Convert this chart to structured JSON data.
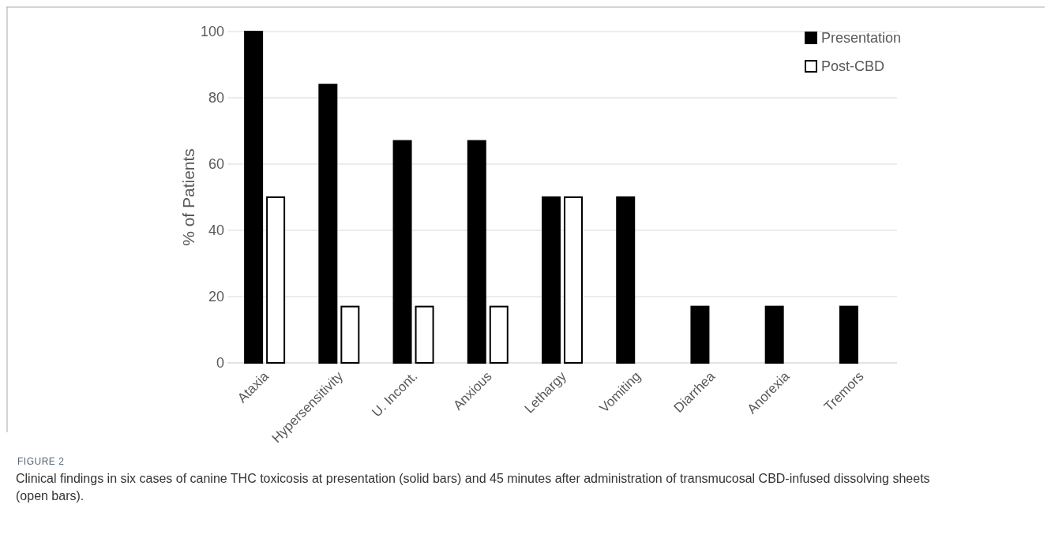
{
  "chart_data": {
    "type": "bar",
    "ylabel": "% of Patients",
    "categories": [
      "Ataxia",
      "Hypersensitivity",
      "U. Incont.",
      "Anxious",
      "Lethargy",
      "Vomiting",
      "Diarrhea",
      "Anorexia",
      "Tremors"
    ],
    "series": [
      {
        "name": "Presentation",
        "color": "#000000",
        "values": [
          100,
          84,
          67,
          67,
          50,
          50,
          17,
          17,
          17
        ]
      },
      {
        "name": "Post-CBD",
        "color": "#ffffff",
        "values": [
          50,
          17,
          17,
          17,
          50,
          0,
          0,
          0,
          0
        ]
      }
    ],
    "ylim": [
      0,
      100
    ],
    "yticks": [
      0,
      20,
      40,
      60,
      80,
      100
    ],
    "grid": "y",
    "legend": "top right",
    "annotations": [
      "FIGURE 2",
      "Clinical findings in six cases of canine THC toxicosis at presentation (solid bars) and 45 minutes after administration of transmucosal CBD-infused dissolving sheets (open bars)."
    ]
  }
}
